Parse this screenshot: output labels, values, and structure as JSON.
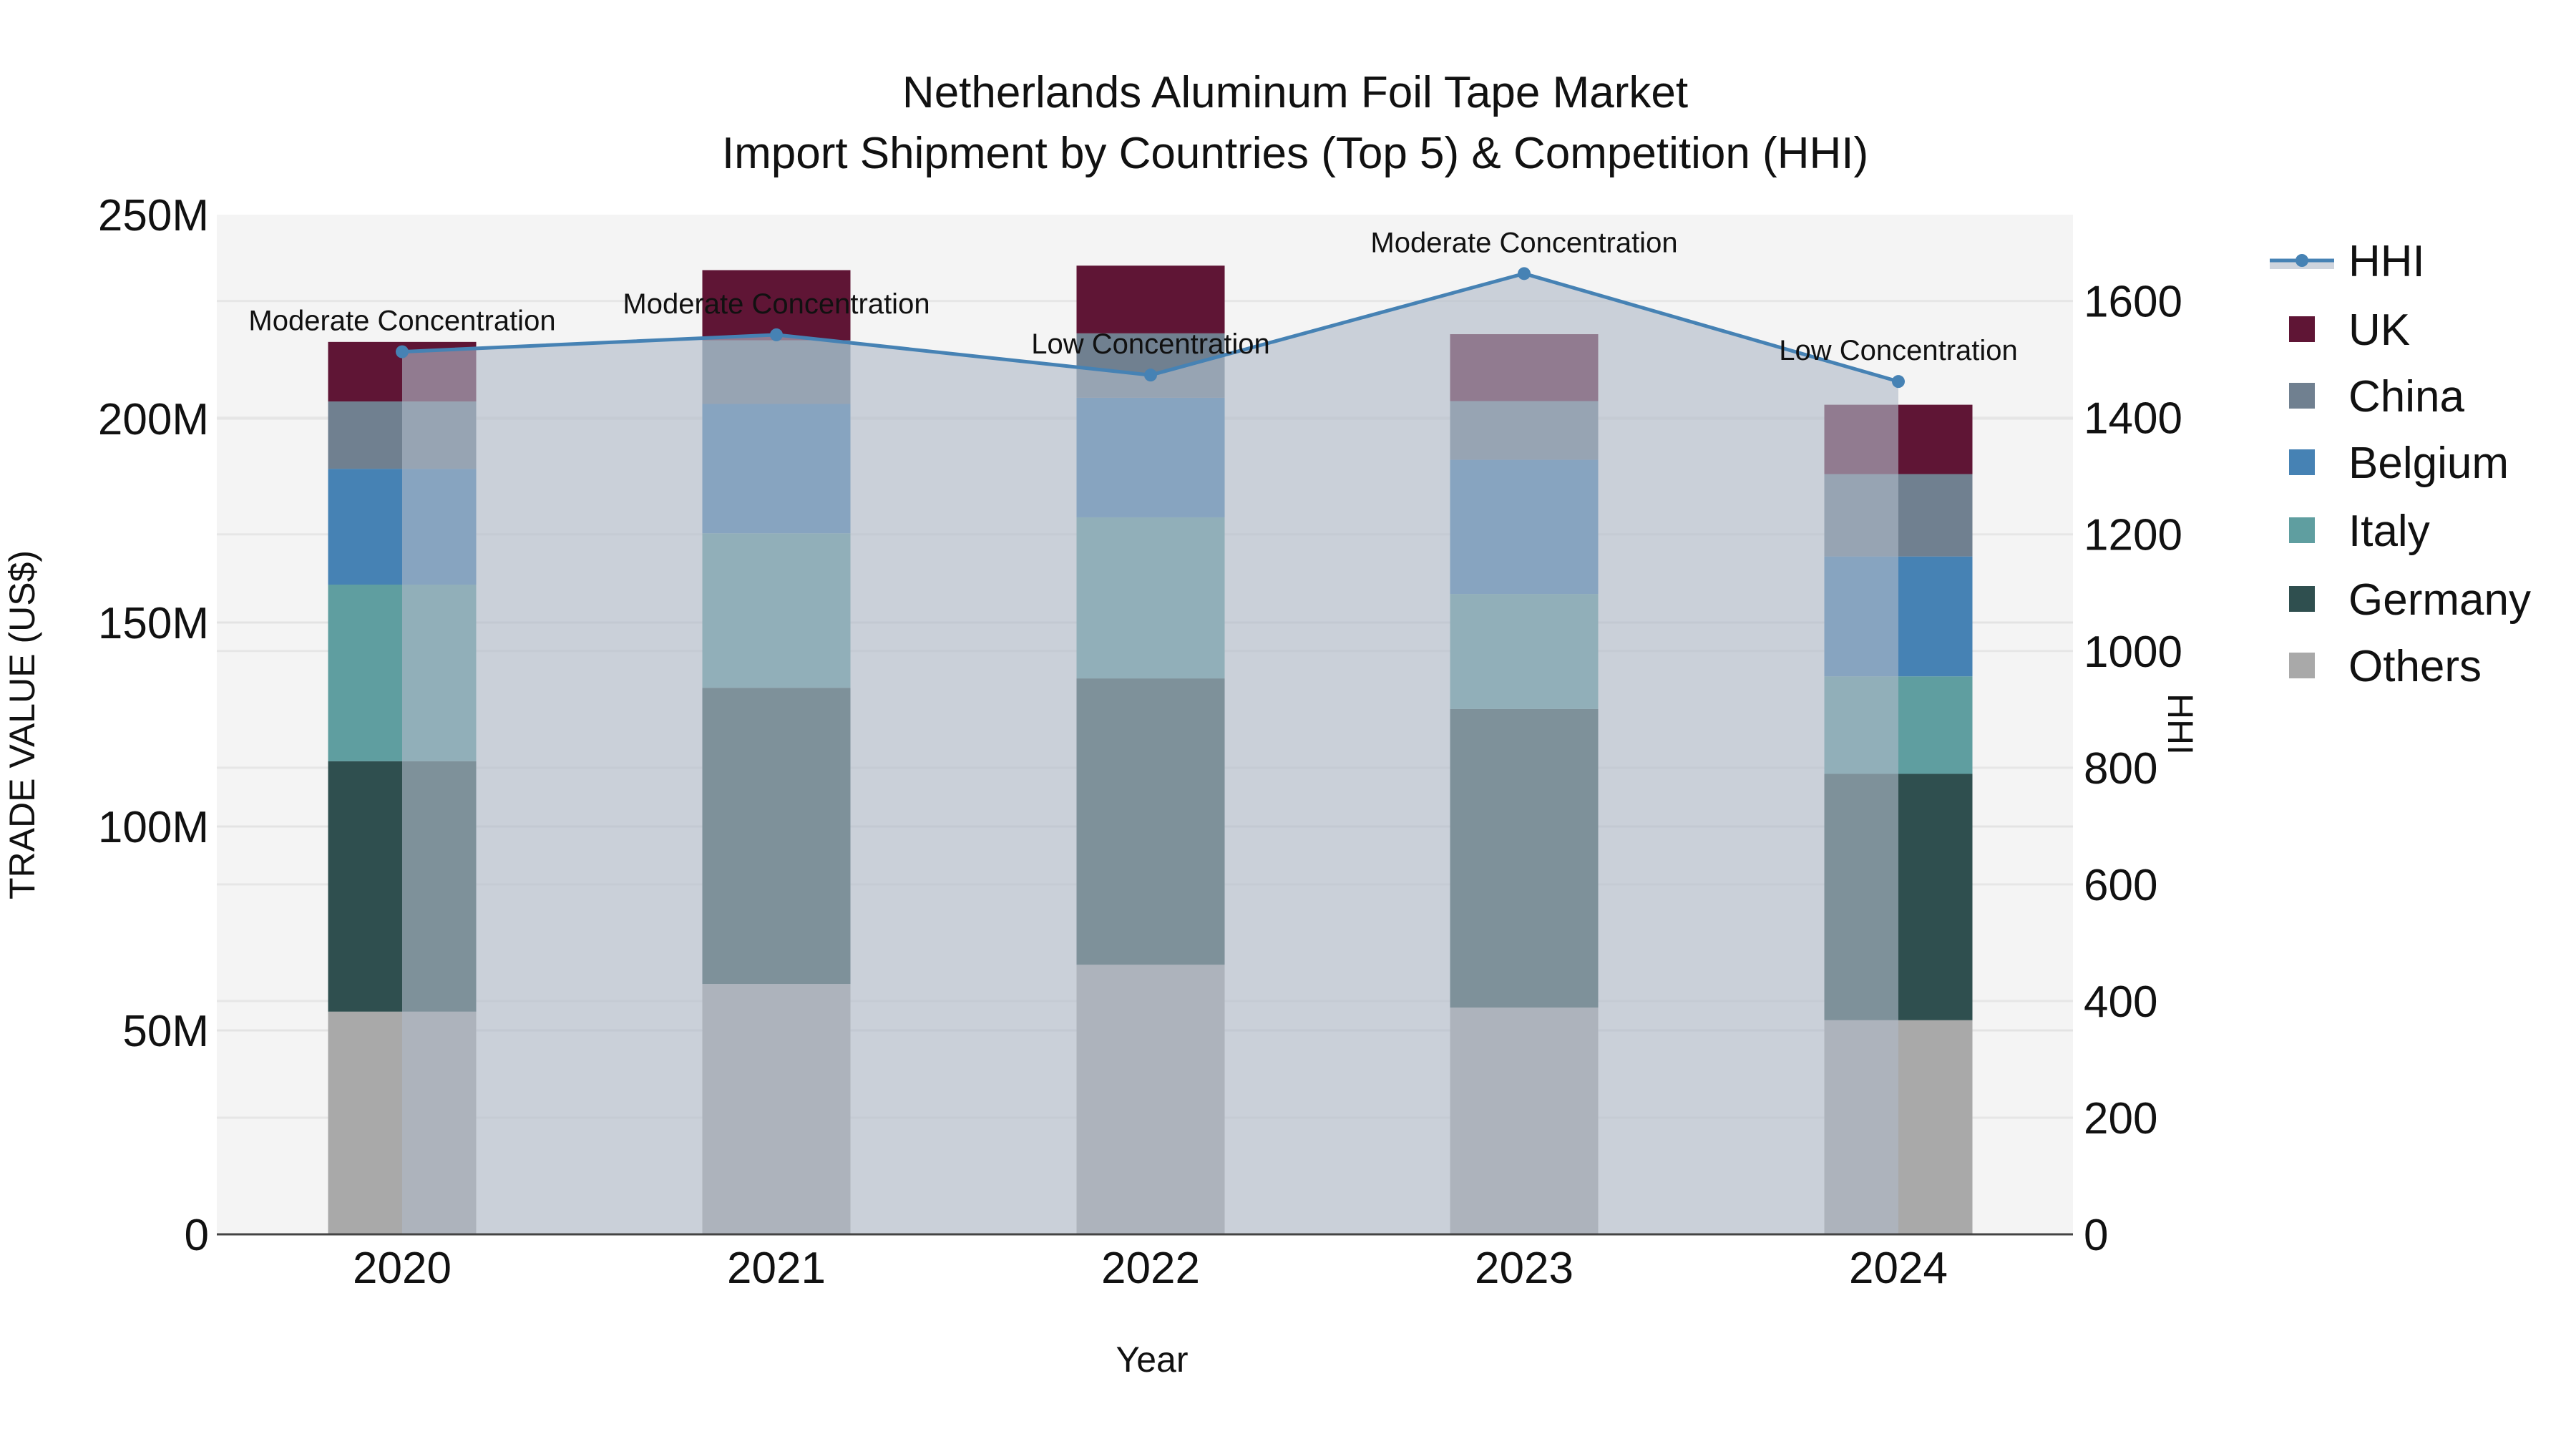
{
  "title": {
    "line1": "Netherlands Aluminum Foil Tape Market",
    "line2": "Import Shipment by Countries (Top 5) & Competition (HHI)"
  },
  "axes": {
    "x_title": "Year",
    "y_left_title": "TRADE VALUE (US$)",
    "y_right_title": "HHI",
    "y_left_ticks": [
      "0",
      "50M",
      "100M",
      "150M",
      "200M",
      "250M"
    ],
    "y_right_ticks": [
      "0",
      "200",
      "400",
      "600",
      "800",
      "1000",
      "1200",
      "1400",
      "1600"
    ],
    "x_ticks": [
      "2020",
      "2021",
      "2022",
      "2023",
      "2024"
    ]
  },
  "legend": {
    "items": [
      {
        "label": "HHI",
        "type": "line",
        "color": "#4682b4"
      },
      {
        "label": "UK",
        "type": "bar",
        "color": "#5f1535"
      },
      {
        "label": "China",
        "type": "bar",
        "color": "#708090"
      },
      {
        "label": "Belgium",
        "type": "bar",
        "color": "#4682b4"
      },
      {
        "label": "Italy",
        "type": "bar",
        "color": "#5f9ea0"
      },
      {
        "label": "Germany",
        "type": "bar",
        "color": "#2f4f4f"
      },
      {
        "label": "Others",
        "type": "bar",
        "color": "#a9a9a9"
      }
    ]
  },
  "annotations": [
    {
      "year": "2020",
      "text": "Moderate Concentration"
    },
    {
      "year": "2021",
      "text": "Moderate Concentration"
    },
    {
      "year": "2022",
      "text": "Low Concentration"
    },
    {
      "year": "2023",
      "text": "Moderate Concentration"
    },
    {
      "year": "2024",
      "text": "Low Concentration"
    }
  ],
  "chart_data": {
    "type": "bar",
    "subtype": "stacked bar with line overlay (secondary axis)",
    "title": "Netherlands Aluminum Foil Tape Market — Import Shipment by Countries (Top 5) & Competition (HHI)",
    "xlabel": "Year",
    "ylabel": "TRADE VALUE (US$)",
    "y2label": "HHI",
    "categories": [
      "2020",
      "2021",
      "2022",
      "2023",
      "2024"
    ],
    "ylim": [
      0,
      250000000
    ],
    "y2lim": [
      0,
      1748
    ],
    "grid": true,
    "legend_position": "right",
    "series": [
      {
        "name": "Others",
        "color": "#a9a9a9",
        "values": [
          54600000,
          61400000,
          66100000,
          55600000,
          52500000
        ]
      },
      {
        "name": "Germany",
        "color": "#2f4f4f",
        "values": [
          61400000,
          72600000,
          70200000,
          73200000,
          60400000
        ]
      },
      {
        "name": "Italy",
        "color": "#5f9ea0",
        "values": [
          43300000,
          37900000,
          39500000,
          28200000,
          23900000
        ]
      },
      {
        "name": "Belgium",
        "color": "#4682b4",
        "values": [
          28400000,
          31700000,
          29300000,
          32900000,
          29400000
        ]
      },
      {
        "name": "China",
        "color": "#708090",
        "values": [
          16500000,
          15600000,
          15800000,
          14400000,
          20200000
        ]
      },
      {
        "name": "UK",
        "color": "#5f1535",
        "values": [
          14600000,
          17200000,
          16600000,
          16400000,
          17000000
        ]
      }
    ],
    "line_series": {
      "name": "HHI",
      "axis": "right",
      "color": "#4682b4",
      "fill": "tozeroy",
      "values": [
        1513,
        1542,
        1473,
        1647,
        1462
      ],
      "labels": [
        "Moderate Concentration",
        "Moderate Concentration",
        "Low Concentration",
        "Moderate Concentration",
        "Low Concentration"
      ]
    }
  }
}
